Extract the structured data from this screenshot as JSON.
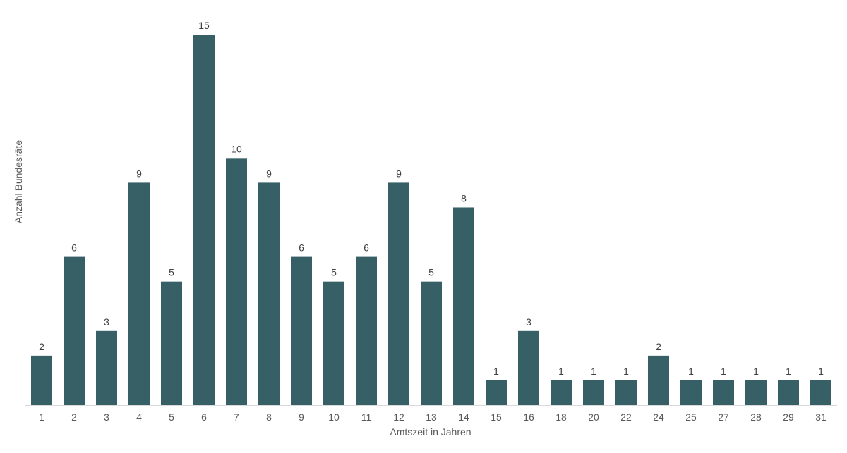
{
  "chart_data": {
    "type": "bar",
    "title": "",
    "xlabel": "Amtszeit in Jahren",
    "ylabel": "Anzahl Bundesräte",
    "categories": [
      "1",
      "2",
      "3",
      "4",
      "5",
      "6",
      "7",
      "8",
      "9",
      "10",
      "11",
      "12",
      "13",
      "14",
      "15",
      "16",
      "18",
      "20",
      "22",
      "24",
      "25",
      "27",
      "28",
      "29",
      "31"
    ],
    "values": [
      2,
      6,
      3,
      9,
      5,
      15,
      10,
      9,
      6,
      5,
      6,
      9,
      5,
      8,
      1,
      3,
      1,
      1,
      1,
      2,
      1,
      1,
      1,
      1,
      1
    ],
    "ylim": [
      0,
      15
    ],
    "grid": false,
    "legend": "none",
    "data_labels": true,
    "colors": {
      "bar": "#365f66",
      "axis": "#d9d9d9",
      "text": "#595959",
      "label": "#404040"
    }
  }
}
